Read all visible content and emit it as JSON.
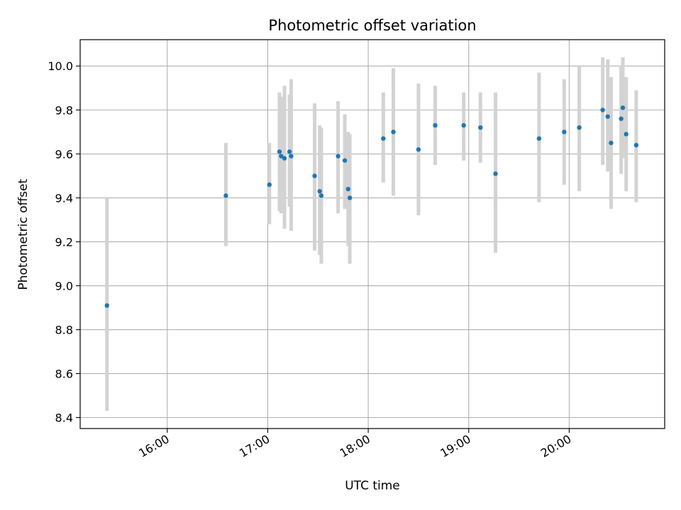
{
  "chart_data": {
    "type": "scatter",
    "title": "Photometric offset variation",
    "xlabel": "UTC time",
    "ylabel": "Photometric offset",
    "x_ticks": [
      "16:00",
      "17:00",
      "18:00",
      "19:00",
      "20:00"
    ],
    "y_ticks": [
      "8.4",
      "8.6",
      "8.8",
      "9.0",
      "9.2",
      "9.4",
      "9.6",
      "9.8",
      "10.0"
    ],
    "xlim": [
      "15:08",
      "20:57"
    ],
    "ylim": [
      8.35,
      10.12
    ],
    "grid": true,
    "legend": "none",
    "colors": {
      "points": "#1f77b4",
      "errorbars": "#d3d3d3",
      "grid": "#b0b0b0"
    },
    "points": [
      {
        "x": "15:24",
        "y": 8.91,
        "lo": 8.43,
        "hi": 9.4
      },
      {
        "x": "16:35",
        "y": 9.41,
        "lo": 9.18,
        "hi": 9.65
      },
      {
        "x": "17:01",
        "y": 9.46,
        "lo": 9.28,
        "hi": 9.65
      },
      {
        "x": "17:07",
        "y": 9.61,
        "lo": 9.34,
        "hi": 9.88
      },
      {
        "x": "17:08",
        "y": 9.59,
        "lo": 9.33,
        "hi": 9.86
      },
      {
        "x": "17:10",
        "y": 9.58,
        "lo": 9.26,
        "hi": 9.91
      },
      {
        "x": "17:13",
        "y": 9.61,
        "lo": 9.36,
        "hi": 9.87
      },
      {
        "x": "17:14",
        "y": 9.59,
        "lo": 9.25,
        "hi": 9.94
      },
      {
        "x": "17:28",
        "y": 9.5,
        "lo": 9.16,
        "hi": 9.83
      },
      {
        "x": "17:31",
        "y": 9.43,
        "lo": 9.14,
        "hi": 9.73
      },
      {
        "x": "17:32",
        "y": 9.41,
        "lo": 9.1,
        "hi": 9.72
      },
      {
        "x": "17:42",
        "y": 9.59,
        "lo": 9.33,
        "hi": 9.84
      },
      {
        "x": "17:46",
        "y": 9.57,
        "lo": 9.35,
        "hi": 9.78
      },
      {
        "x": "17:48",
        "y": 9.44,
        "lo": 9.18,
        "hi": 9.7
      },
      {
        "x": "17:49",
        "y": 9.4,
        "lo": 9.1,
        "hi": 9.69
      },
      {
        "x": "18:09",
        "y": 9.67,
        "lo": 9.47,
        "hi": 9.88
      },
      {
        "x": "18:15",
        "y": 9.7,
        "lo": 9.41,
        "hi": 9.99
      },
      {
        "x": "18:30",
        "y": 9.62,
        "lo": 9.32,
        "hi": 9.92
      },
      {
        "x": "18:40",
        "y": 9.73,
        "lo": 9.55,
        "hi": 9.91
      },
      {
        "x": "18:57",
        "y": 9.73,
        "lo": 9.57,
        "hi": 9.88
      },
      {
        "x": "19:07",
        "y": 9.72,
        "lo": 9.56,
        "hi": 9.88
      },
      {
        "x": "19:16",
        "y": 9.51,
        "lo": 9.15,
        "hi": 9.88
      },
      {
        "x": "19:42",
        "y": 9.67,
        "lo": 9.38,
        "hi": 9.97
      },
      {
        "x": "19:57",
        "y": 9.7,
        "lo": 9.46,
        "hi": 9.94
      },
      {
        "x": "20:06",
        "y": 9.72,
        "lo": 9.43,
        "hi": 10.0
      },
      {
        "x": "20:20",
        "y": 9.8,
        "lo": 9.55,
        "hi": 10.04
      },
      {
        "x": "20:23",
        "y": 9.77,
        "lo": 9.52,
        "hi": 10.03
      },
      {
        "x": "20:25",
        "y": 9.65,
        "lo": 9.35,
        "hi": 9.95
      },
      {
        "x": "20:31",
        "y": 9.76,
        "lo": 9.51,
        "hi": 10.0
      },
      {
        "x": "20:32",
        "y": 9.81,
        "lo": 9.58,
        "hi": 10.04
      },
      {
        "x": "20:34",
        "y": 9.69,
        "lo": 9.43,
        "hi": 9.95
      },
      {
        "x": "20:40",
        "y": 9.64,
        "lo": 9.38,
        "hi": 9.89
      }
    ]
  }
}
